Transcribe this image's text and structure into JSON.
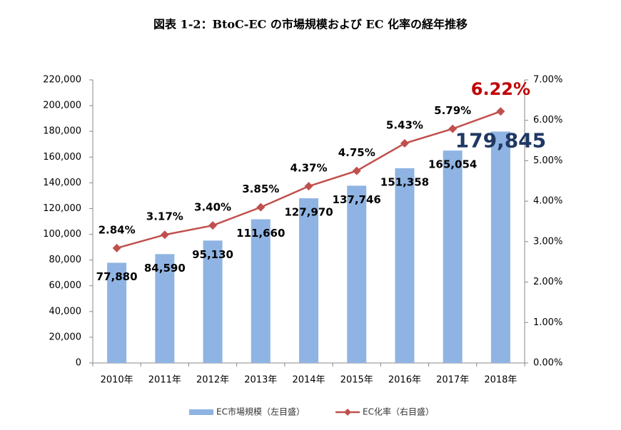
{
  "chart_data": {
    "type": "bar-line",
    "title": "図表 1-2：BtoC-EC の市場規模および EC 化率の経年推移",
    "categories": [
      "2010年",
      "2011年",
      "2012年",
      "2013年",
      "2014年",
      "2015年",
      "2016年",
      "2017年",
      "2018年"
    ],
    "series": [
      {
        "name": "EC市場規模（左目盛）",
        "type": "bar",
        "color": "#8fb4e3",
        "values": [
          77880,
          84590,
          95130,
          111660,
          127970,
          137746,
          151358,
          165054,
          179845
        ],
        "value_labels": [
          "77,880",
          "84,590",
          "95,130",
          "111,660",
          "127,970",
          "137,746",
          "151,358",
          "165,054",
          "179,845"
        ]
      },
      {
        "name": "EC化率（右目盛）",
        "type": "line",
        "axis": "y2",
        "color": "#c0504d",
        "values": [
          2.84,
          3.17,
          3.4,
          3.85,
          4.37,
          4.75,
          5.43,
          5.79,
          6.22
        ],
        "value_labels": [
          "2.84%",
          "3.17%",
          "3.40%",
          "3.85%",
          "4.37%",
          "4.75%",
          "5.43%",
          "5.79%",
          "6.22%"
        ]
      }
    ],
    "ylim": [
      0,
      220000
    ],
    "yticks": [
      0,
      {
        "value": 20000,
        "label": "20,000"
      },
      {
        "value": 40000,
        "label": "40,000"
      },
      {
        "value": 60000,
        "label": "60,000"
      },
      {
        "value": 80000,
        "label": "80,000"
      },
      {
        "value": 100000,
        "label": "100,000"
      },
      {
        "value": 120000,
        "label": "120,000"
      },
      {
        "value": 140000,
        "label": "140,000"
      },
      {
        "value": 160000,
        "label": "160,000"
      },
      {
        "value": 180000,
        "label": "180,000"
      },
      {
        "value": 200000,
        "label": "200,000"
      },
      {
        "value": 220000,
        "label": "220,000"
      }
    ],
    "y2lim": [
      0,
      7
    ],
    "y2ticks": [
      {
        "value": 0,
        "label": "0.00%"
      },
      {
        "value": 1,
        "label": "1.00%"
      },
      {
        "value": 2,
        "label": "2.00%"
      },
      {
        "value": 3,
        "label": "3.00%"
      },
      {
        "value": 4,
        "label": "4.00%"
      },
      {
        "value": 5,
        "label": "5.00%"
      },
      {
        "value": 6,
        "label": "6.00%"
      },
      {
        "value": 7,
        "label": "7.00%"
      }
    ],
    "grid": false
  }
}
